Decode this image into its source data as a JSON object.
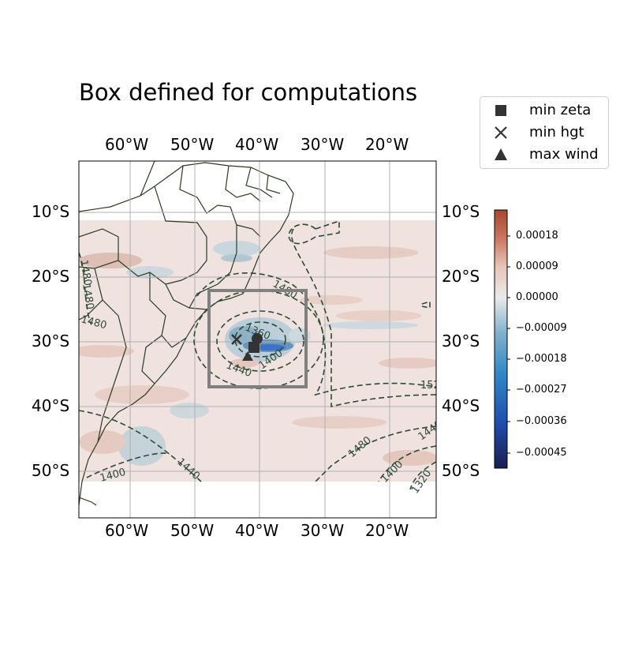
{
  "title": "Box defined for computations",
  "legend": {
    "items": [
      {
        "label": "min zeta",
        "marker": "square"
      },
      {
        "label": "min hgt",
        "marker": "x"
      },
      {
        "label": "max wind",
        "marker": "triangle"
      }
    ]
  },
  "axes": {
    "top_lon_labels": [
      "60°W",
      "50°W",
      "40°W",
      "30°W",
      "20°W"
    ],
    "bottom_lon_labels": [
      "60°W",
      "50°W",
      "40°W",
      "30°W",
      "20°W"
    ],
    "left_lat_labels": [
      "10°S",
      "20°S",
      "30°S",
      "40°S",
      "50°S"
    ],
    "right_lat_labels": [
      "10°S",
      "20°S",
      "30°S",
      "40°S",
      "50°S"
    ]
  },
  "colorbar": {
    "tick_labels": [
      "0.00018",
      "0.00009",
      "0.00000",
      "−0.00009",
      "−0.00018",
      "−0.00027",
      "−0.00036",
      "−0.00045"
    ],
    "colors": [
      "#1a1f4f",
      "#1f4fb0",
      "#2f86c8",
      "#7fb0cc",
      "#e9eaea",
      "#e8c4b8",
      "#c8705a",
      "#a64a30"
    ]
  },
  "contour_labels": [
    "1480",
    "1360",
    "1400",
    "1440",
    "1400",
    "1440",
    "1480",
    "1400",
    "1320",
    "1480",
    "1440",
    "152",
    "1480",
    "1480"
  ],
  "box_color": "#808080",
  "marker_color": "#333333"
}
